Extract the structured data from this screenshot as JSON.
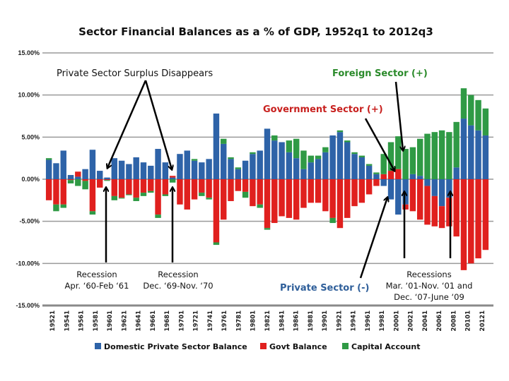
{
  "chart_data": {
    "type": "bar",
    "stacked": true,
    "title": "Sector Financial Balances as a % of GDP, 1952q1 to 2012q3",
    "xlabel": "",
    "ylabel": "",
    "ylim": [
      -15,
      15
    ],
    "yticks": [
      15,
      10,
      5,
      0,
      -5,
      -10,
      -15
    ],
    "ytick_labels": [
      "15.00%",
      "10.00%",
      "5.00%",
      "0.00%",
      "-5.00%",
      "-10.00%",
      "-15.00%"
    ],
    "grid": true,
    "legend_position": "bottom",
    "xtick_labels": [
      "19521",
      "19541",
      "19561",
      "19581",
      "19601",
      "19621",
      "19641",
      "19661",
      "19681",
      "19701",
      "19721",
      "19741",
      "19761",
      "19781",
      "19801",
      "19821",
      "19841",
      "19861",
      "19881",
      "19901",
      "19921",
      "19941",
      "19961",
      "19981",
      "20001",
      "20021",
      "20041",
      "20061",
      "20081",
      "20101",
      "20121"
    ],
    "categories": [
      "1952",
      "1953",
      "1954",
      "1955",
      "1956",
      "1957",
      "1958",
      "1959",
      "1960",
      "1961",
      "1962",
      "1963",
      "1964",
      "1965",
      "1966",
      "1967",
      "1968",
      "1969",
      "1970",
      "1971",
      "1972",
      "1973",
      "1974",
      "1975",
      "1976",
      "1977",
      "1978",
      "1979",
      "1980",
      "1981",
      "1982",
      "1983",
      "1984",
      "1985",
      "1986",
      "1987",
      "1988",
      "1989",
      "1990",
      "1991",
      "1992",
      "1993",
      "1994",
      "1995",
      "1996",
      "1997",
      "1998",
      "1999",
      "2000",
      "2001",
      "2002",
      "2003",
      "2004",
      "2005",
      "2006",
      "2007",
      "2008",
      "2009",
      "2010",
      "2011",
      "2012"
    ],
    "series": [
      {
        "name": "Domestic Private Sector Balance",
        "color": "#2e63a8",
        "values": [
          2.3,
          1.9,
          3.4,
          0.5,
          0.3,
          1.2,
          3.5,
          1.0,
          0.2,
          2.5,
          2.2,
          1.8,
          2.6,
          2.0,
          1.6,
          3.6,
          2.0,
          0.2,
          3.0,
          3.4,
          2.2,
          2.0,
          2.4,
          7.8,
          4.2,
          2.4,
          1.2,
          2.2,
          3.0,
          3.4,
          6.0,
          4.6,
          4.4,
          3.2,
          2.5,
          1.2,
          2.0,
          2.4,
          3.2,
          5.2,
          5.6,
          4.4,
          3.0,
          2.6,
          1.6,
          0.6,
          -0.8,
          -2.4,
          -4.2,
          -3.0,
          0.6,
          0.4,
          -0.8,
          -2.0,
          -3.2,
          -2.2,
          1.4,
          7.2,
          6.4,
          5.8,
          5.2
        ]
      },
      {
        "name": "Govt Balance",
        "color": "#e0201e",
        "values": [
          -2.5,
          -3.0,
          -3.0,
          -0.1,
          0.6,
          -0.2,
          -3.8,
          -1.0,
          -0.1,
          -2.0,
          -2.2,
          -1.8,
          -2.2,
          -1.6,
          -1.4,
          -4.2,
          -1.8,
          0.2,
          -3.0,
          -3.6,
          -2.4,
          -1.6,
          -2.2,
          -7.5,
          -4.8,
          -2.6,
          -1.4,
          -1.5,
          -3.2,
          -3.0,
          -5.8,
          -5.2,
          -4.4,
          -4.6,
          -4.8,
          -3.4,
          -2.8,
          -2.8,
          -3.8,
          -4.6,
          -5.8,
          -4.6,
          -3.2,
          -2.8,
          -1.8,
          -0.8,
          0.6,
          1.0,
          1.2,
          -0.6,
          -3.8,
          -4.8,
          -4.6,
          -3.6,
          -2.6,
          -3.4,
          -6.8,
          -10.8,
          -10.0,
          -9.4,
          -8.4
        ]
      },
      {
        "name": "Capital Account",
        "color": "#2f9a45",
        "values": [
          0.2,
          -0.8,
          -0.4,
          -0.4,
          -0.8,
          -1.0,
          -0.4,
          0.0,
          -0.1,
          -0.5,
          -0.1,
          -0.1,
          -0.4,
          -0.4,
          -0.2,
          -0.4,
          -0.2,
          -0.4,
          0.0,
          0.0,
          0.2,
          -0.4,
          -0.2,
          -0.3,
          0.6,
          0.2,
          0.2,
          -0.7,
          0.2,
          -0.4,
          -0.2,
          0.6,
          0.0,
          1.4,
          2.3,
          2.2,
          0.8,
          0.4,
          0.6,
          -0.6,
          0.2,
          0.2,
          0.2,
          0.2,
          0.2,
          0.2,
          2.4,
          3.4,
          3.9,
          3.6,
          3.2,
          4.4,
          5.4,
          5.6,
          5.8,
          5.6,
          5.4,
          3.6,
          3.6,
          3.6,
          3.2
        ]
      }
    ],
    "legend": [
      {
        "label": "Domestic Private Sector Balance",
        "color": "#2e63a8"
      },
      {
        "label": "Govt Balance",
        "color": "#e0201e"
      },
      {
        "label": "Capital Account",
        "color": "#2f9a45"
      }
    ],
    "annotations": {
      "surplus_disappears": "Private Sector Surplus Disappears",
      "foreign_sector": "Foreign Sector (+)",
      "government_sector": "Government Sector (+)",
      "private_sector": "Private Sector (-)",
      "recession1_title": "Recession",
      "recession1_dates": "Apr. ‘60-Feb ‘61",
      "recession2_title": "Recession",
      "recession2_dates": "Dec. ‘69-Nov. ‘70",
      "recession3_title": "Recessions",
      "recession3_line1": "Mar. ‘01-Nov. ‘01 and",
      "recession3_line2": "Dec. ‘07-June ‘09"
    },
    "annotation_colors": {
      "foreign_sector": "#2a8a2a",
      "government_sector": "#c8201e",
      "private_sector": "#2f5f9a"
    }
  }
}
